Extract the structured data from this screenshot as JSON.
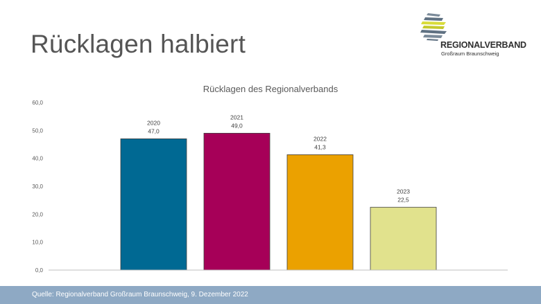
{
  "slide": {
    "title": "Rücklagen halbiert",
    "logo": {
      "name": "REGIONALVERBAND",
      "subtitle": "Großraum Braunschweig",
      "icon": "stacked-ribbon-logo-icon"
    },
    "footer": "Quelle: Regionalverband Großraum Braunschweig, 9. Dezember 2022"
  },
  "colors": {
    "title": "#555555",
    "footer_bg": "#8ea9c4",
    "axis_text": "#595959"
  },
  "chart_data": {
    "type": "bar",
    "title": "Rücklagen des Regionalverbands",
    "categories": [
      "2020",
      "2021",
      "2022",
      "2023"
    ],
    "values": [
      47.0,
      49.0,
      41.3,
      22.5
    ],
    "value_labels": [
      "47,0",
      "49,0",
      "41,3",
      "22,5"
    ],
    "bar_colors": [
      "#006993",
      "#a60058",
      "#eba100",
      "#e1e28d"
    ],
    "ylim": [
      0,
      60
    ],
    "yticks": [
      "0,0",
      "10,0",
      "20,0",
      "30,0",
      "40,0",
      "50,0",
      "60,0"
    ],
    "xlabel": "",
    "ylabel": "",
    "grid": false,
    "legend": "none"
  }
}
